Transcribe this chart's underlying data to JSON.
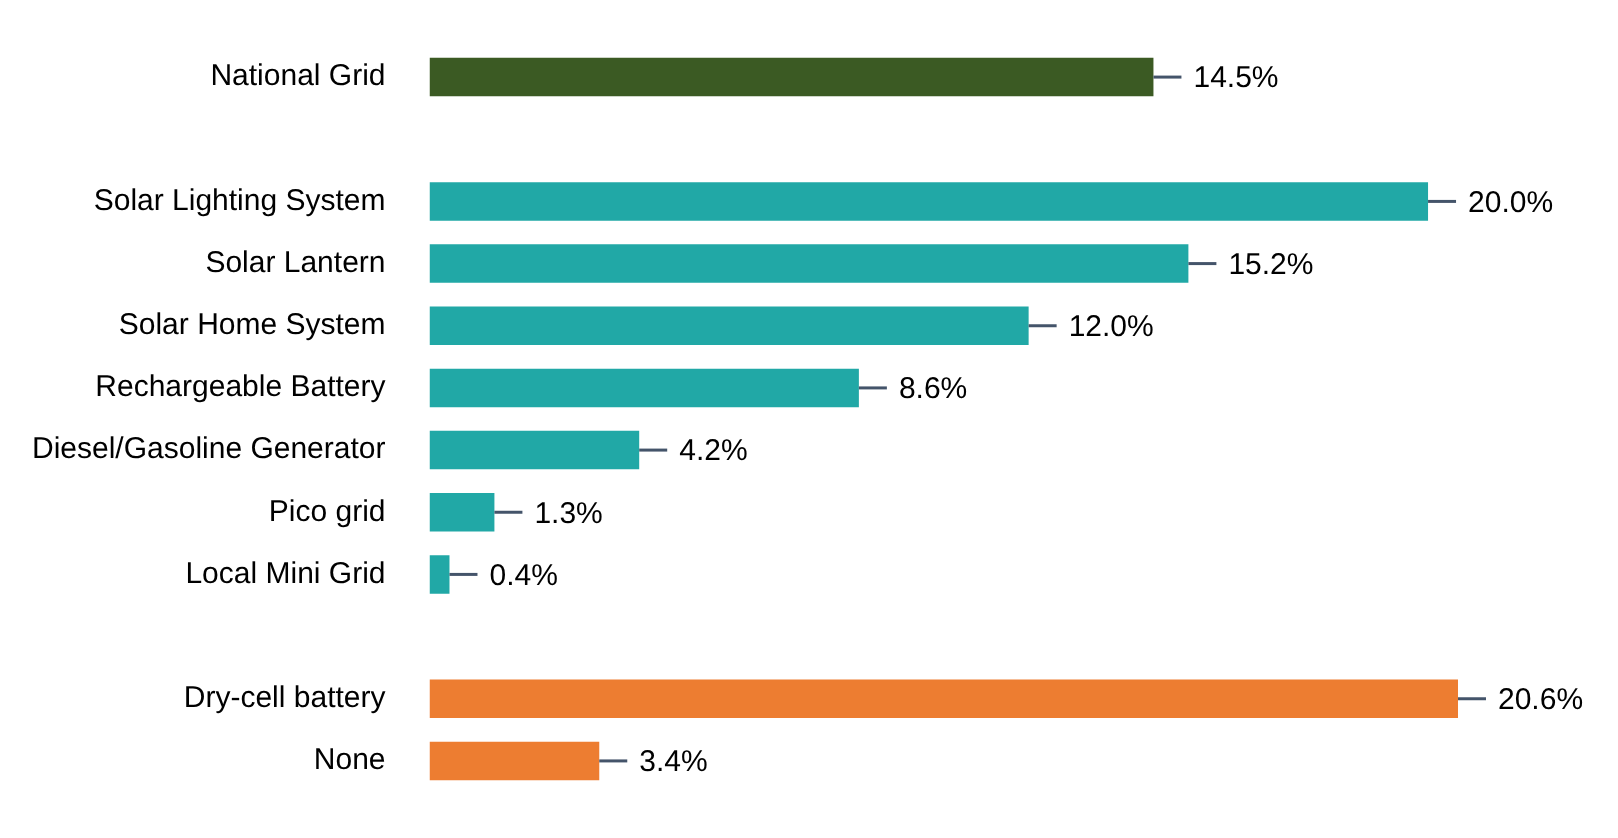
{
  "chart_data": {
    "type": "bar",
    "orientation": "horizontal",
    "categories": [
      "National Grid",
      null,
      "Solar Lighting System",
      "Solar Lantern",
      "Solar Home System",
      "Rechargeable Battery",
      "Diesel/Gasoline Generator",
      "Pico grid",
      "Local Mini Grid",
      null,
      "Dry-cell battery",
      "None"
    ],
    "values": [
      14.5,
      null,
      20.0,
      15.2,
      12.0,
      8.6,
      4.2,
      1.3,
      0.4,
      null,
      20.6,
      3.4
    ],
    "colors": [
      "#3b5a23",
      null,
      "#21a8a6",
      "#21a8a6",
      "#21a8a6",
      "#21a8a6",
      "#21a8a6",
      "#21a8a6",
      "#21a8a6",
      null,
      "#ed7d31",
      "#ed7d31"
    ],
    "value_labels": [
      "14.5%",
      null,
      "20.0%",
      "15.2%",
      "12.0%",
      "8.6%",
      "4.2%",
      "1.3%",
      "0.4%",
      null,
      "20.6%",
      "3.4%"
    ],
    "grid": false,
    "legend": false
  }
}
